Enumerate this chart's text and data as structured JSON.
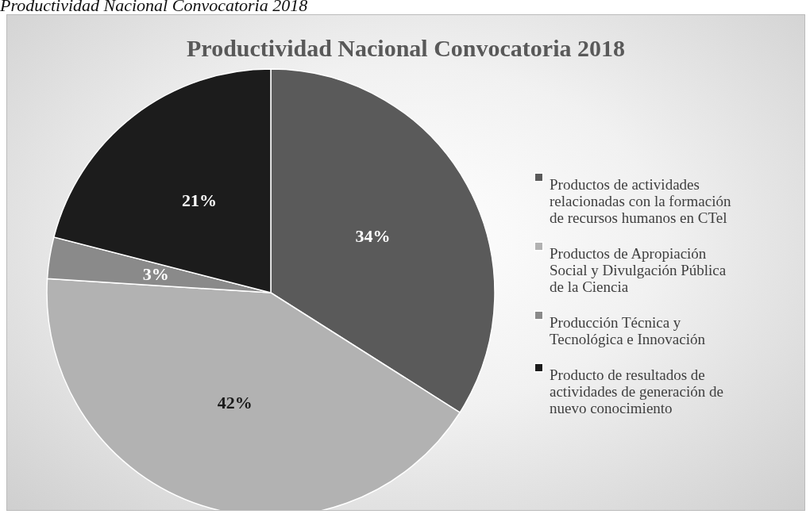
{
  "chart_data": {
    "type": "pie",
    "title": "Productividad Nacional Convocatoria 2018",
    "annotations": [
      "Productividad Nacional Convocatoria 2018"
    ],
    "categories": [
      "Productos de actividades relacionadas con la formación de recursos humanos en CTel",
      "Productos de Apropiación Social y Divulgación Pública de la Ciencia",
      "Producción Técnica y Tecnológica e Innovación",
      "Producto de resultados de actividades de generación de nuevo conocimiento"
    ],
    "values": [
      34,
      42,
      3,
      21
    ],
    "colors": [
      "#5a5a5a",
      "#b2b2b2",
      "#8a8a8a",
      "#1c1c1c"
    ],
    "value_labels": [
      "34%",
      "42%",
      "3%",
      "21%"
    ],
    "legend": "right"
  }
}
